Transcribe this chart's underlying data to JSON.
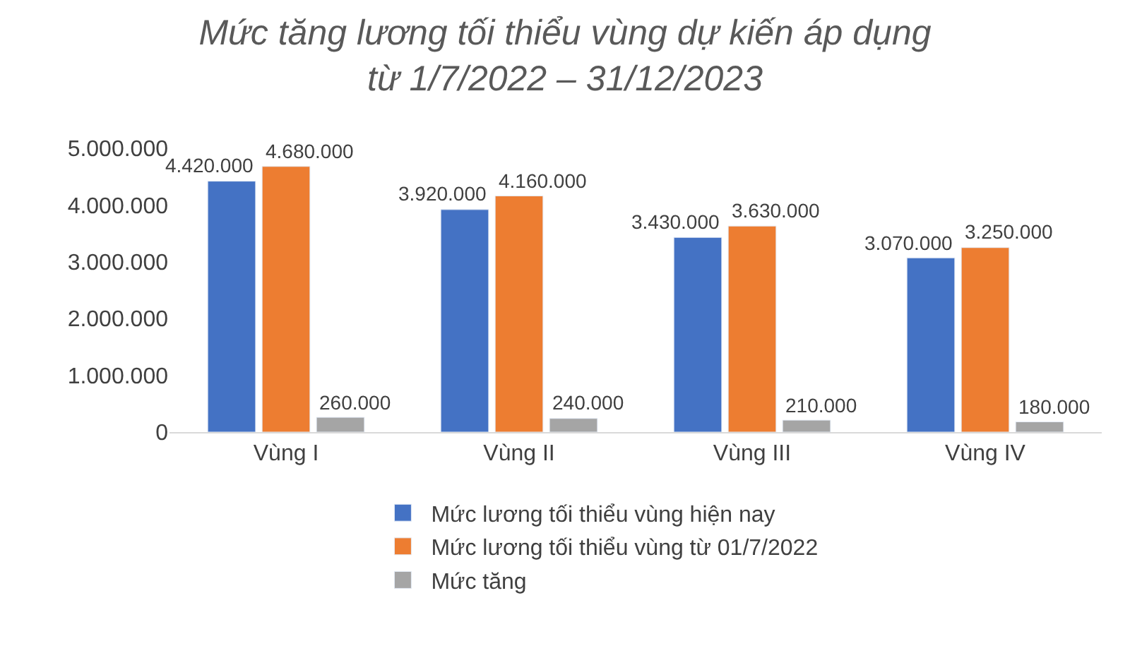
{
  "chart_data": {
    "type": "bar",
    "title": "Mức tăng lương tối thiểu vùng dự kiến áp dụng từ 1/7/2022 – 31/12/2023",
    "categories": [
      "Vùng I",
      "Vùng II",
      "Vùng III",
      "Vùng IV"
    ],
    "series": [
      {
        "name": "Mức lương tối thiểu vùng hiện nay",
        "color": "#4472c4",
        "values": [
          4420000,
          3920000,
          3430000,
          3070000
        ],
        "value_labels": [
          "4.420.000",
          "3.920.000",
          "3.430.000",
          "3.070.000"
        ]
      },
      {
        "name": "Mức lương tối thiểu vùng từ 01/7/2022",
        "color": "#ed7d31",
        "values": [
          4680000,
          4160000,
          3630000,
          3250000
        ],
        "value_labels": [
          "4.680.000",
          "4.160.000",
          "3.630.000",
          "3.250.000"
        ]
      },
      {
        "name": "Mức tăng",
        "color": "#a5a5a5",
        "values": [
          260000,
          240000,
          210000,
          180000
        ],
        "value_labels": [
          "260.000",
          "240.000",
          "210.000",
          "180.000"
        ]
      }
    ],
    "ylim": [
      0,
      5000000
    ],
    "yticks": [
      0,
      {
        "value": 1000000,
        "label": "1.000.000"
      },
      {
        "value": 2000000,
        "label": "2.000.000"
      },
      {
        "value": 3000000,
        "label": "3.000.000"
      },
      {
        "value": 4000000,
        "label": "4.000.000"
      },
      {
        "value": 5000000,
        "label": "5.000.000"
      }
    ],
    "legend": "bottom"
  }
}
